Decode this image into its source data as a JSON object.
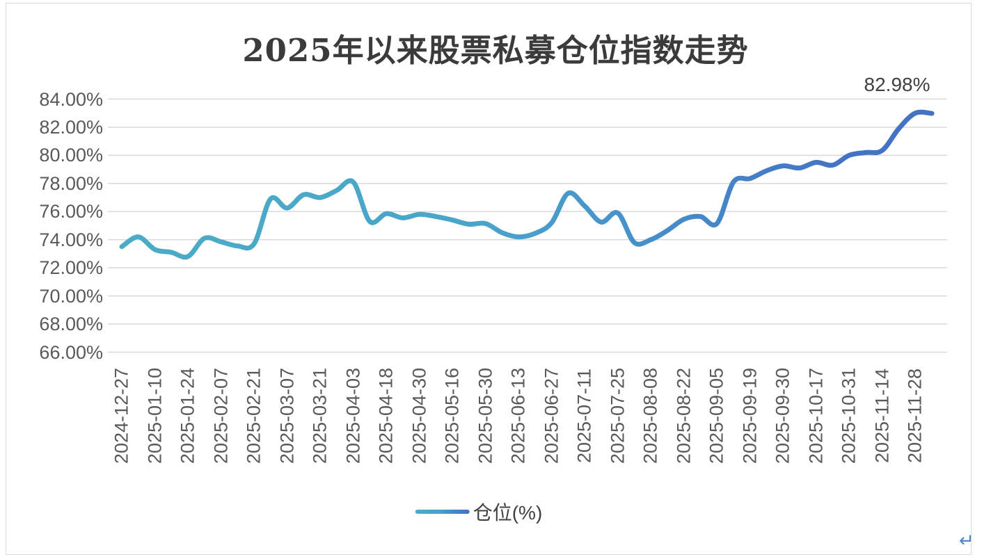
{
  "chart": {
    "title": "2025年以来股票私募仓位指数走势",
    "end_label": "82.98%",
    "legend": {
      "label": "仓位(%)"
    },
    "return_mark": "↵",
    "y_axis": {
      "tick_labels": [
        "84.00%",
        "82.00%",
        "80.00%",
        "78.00%",
        "76.00%",
        "74.00%",
        "72.00%",
        "70.00%",
        "68.00%",
        "66.00%"
      ],
      "tick_values": [
        84,
        82,
        80,
        78,
        76,
        74,
        72,
        70,
        68,
        66
      ]
    },
    "x_axis": {
      "tick_labels": [
        "2024-12-27",
        "2025-01-10",
        "2025-01-24",
        "2025-02-07",
        "2025-02-21",
        "2025-03-07",
        "2025-03-21",
        "2025-04-03",
        "2025-04-18",
        "2025-04-30",
        "2025-05-16",
        "2025-05-30",
        "2025-06-13",
        "2025-06-27",
        "2025-07-11",
        "2025-07-25",
        "2025-08-08",
        "2025-08-22",
        "2025-09-05",
        "2025-09-19",
        "2025-09-30",
        "2025-10-17",
        "2025-10-31",
        "2025-11-14",
        "2025-11-28"
      ]
    }
  },
  "chart_data": {
    "type": "line",
    "title": "2025年以来股票私募仓位指数走势",
    "xlabel": "",
    "ylabel": "",
    "ylim": [
      66,
      84
    ],
    "y_step": 2,
    "grid": true,
    "legend_position": "bottom",
    "smooth": true,
    "end_point_label": "82.98%",
    "series": [
      {
        "name": "仓位(%)",
        "x": [
          "2024-12-27",
          "2025-01-03",
          "2025-01-10",
          "2025-01-17",
          "2025-01-24",
          "2025-01-31",
          "2025-02-07",
          "2025-02-14",
          "2025-02-21",
          "2025-02-28",
          "2025-03-07",
          "2025-03-14",
          "2025-03-21",
          "2025-03-28",
          "2025-04-03",
          "2025-04-11",
          "2025-04-18",
          "2025-04-25",
          "2025-04-30",
          "2025-05-09",
          "2025-05-16",
          "2025-05-23",
          "2025-05-30",
          "2025-06-06",
          "2025-06-13",
          "2025-06-20",
          "2025-06-27",
          "2025-07-04",
          "2025-07-11",
          "2025-07-18",
          "2025-07-25",
          "2025-08-01",
          "2025-08-08",
          "2025-08-15",
          "2025-08-22",
          "2025-08-29",
          "2025-09-05",
          "2025-09-12",
          "2025-09-19",
          "2025-09-26",
          "2025-09-30",
          "2025-10-10",
          "2025-10-17",
          "2025-10-24",
          "2025-10-31",
          "2025-11-07",
          "2025-11-14",
          "2025-11-21",
          "2025-11-28",
          "2025-12-05"
        ],
        "values": [
          73.5,
          74.2,
          73.3,
          73.1,
          72.8,
          74.1,
          73.85,
          73.55,
          73.7,
          76.9,
          76.25,
          77.2,
          77.0,
          77.5,
          78.1,
          75.3,
          75.85,
          75.55,
          75.8,
          75.65,
          75.4,
          75.1,
          75.15,
          74.5,
          74.2,
          74.45,
          75.2,
          77.3,
          76.4,
          75.25,
          75.9,
          73.8,
          74.0,
          74.65,
          75.45,
          75.65,
          75.15,
          78.1,
          78.35,
          78.9,
          79.25,
          79.1,
          79.5,
          79.3,
          80.0,
          80.2,
          80.35,
          81.9,
          83.0,
          82.98
        ]
      }
    ],
    "colors": {
      "line_gradient_start": "#4bacc6",
      "line_gradient_end": "#4472c4",
      "gridline": "#d9d9d9",
      "axis_text": "#595959",
      "title_text": "#3b3b3b",
      "data_label_text": "#3f3f3f",
      "return_mark": "#4a86c8"
    }
  }
}
